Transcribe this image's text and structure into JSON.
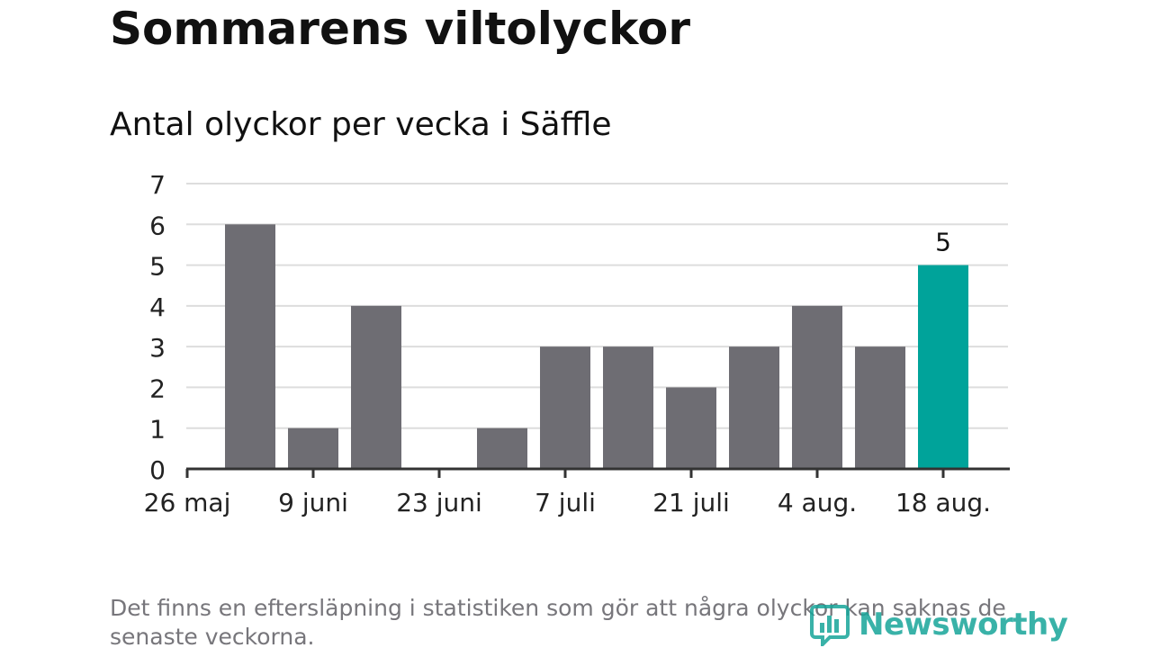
{
  "header": {
    "title": "Sommarens viltolyckor",
    "subtitle": "Antal olyckor per vecka i Säffle"
  },
  "footer": {
    "note": "Det finns en eftersläpning i statistiken som gör att några olyckor kan saknas de senaste veckorna.",
    "logo_text": "Newsworthy"
  },
  "colors": {
    "bar": "#6e6d73",
    "highlight": "#00a39a",
    "grid": "#dddddd",
    "axis": "#333333",
    "text": "#111111",
    "muted": "#77767b"
  },
  "chart_data": {
    "type": "bar",
    "title": "Antal olyckor per vecka i Säffle",
    "xlabel": "",
    "ylabel": "",
    "x_tick_labels": [
      "26 maj",
      "9 juni",
      "23 juni",
      "7 juli",
      "21 juli",
      "4 aug.",
      "18 aug."
    ],
    "y_ticks": [
      0,
      1,
      2,
      3,
      4,
      5,
      6,
      7
    ],
    "ylim": [
      0,
      7
    ],
    "grid": true,
    "series": [
      {
        "values": [
          6,
          1,
          4,
          0,
          1,
          3,
          3,
          2,
          3,
          4,
          3,
          5
        ]
      }
    ],
    "highlight_index": 11,
    "data_labels": [
      {
        "index": 11,
        "text": "5"
      }
    ]
  }
}
